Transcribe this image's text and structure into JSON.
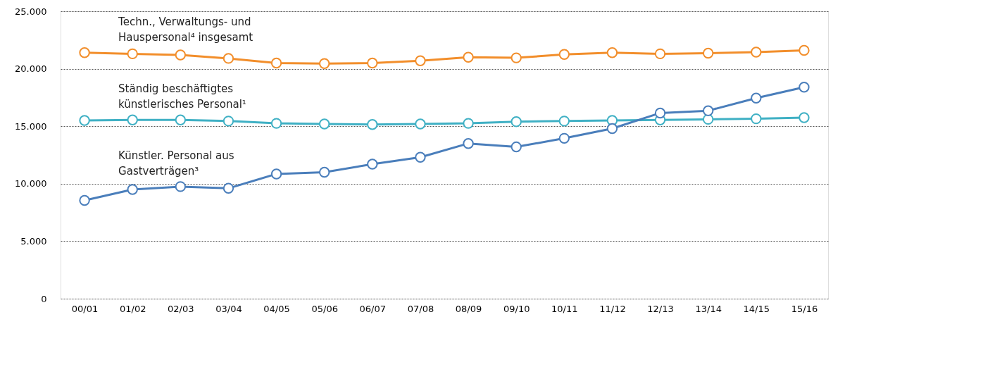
{
  "chart_data": {
    "type": "line",
    "categories": [
      "00/01",
      "01/02",
      "02/03",
      "03/04",
      "04/05",
      "05/06",
      "06/07",
      "07/08",
      "08/09",
      "09/10",
      "10/11",
      "11/12",
      "12/13",
      "13/14",
      "14/15",
      "15/16"
    ],
    "series": [
      {
        "name": "Techn., Verwaltungs- und\nHauspersonal⁴ insgesamt",
        "color": "#f28e2b",
        "values": [
          21400,
          21300,
          21200,
          20900,
          20500,
          20450,
          20500,
          20700,
          21000,
          20950,
          21250,
          21400,
          21300,
          21350,
          21450,
          21600
        ]
      },
      {
        "name": "Ständig beschäftigtes\nkünstlerisches Personal¹",
        "color": "#3fb0c4",
        "values": [
          15500,
          15550,
          15550,
          15450,
          15250,
          15200,
          15150,
          15200,
          15250,
          15400,
          15450,
          15500,
          15550,
          15600,
          15650,
          15750
        ]
      },
      {
        "name": "Künstler. Personal aus\nGastverträgen³",
        "color": "#4a7ebb",
        "values": [
          8550,
          9500,
          9750,
          9600,
          10850,
          11000,
          11700,
          12300,
          13500,
          13200,
          13950,
          14800,
          16150,
          16350,
          17450,
          18400
        ]
      }
    ],
    "ylim": [
      0,
      25000
    ],
    "yticks": [
      {
        "value": 0,
        "label": "0"
      },
      {
        "value": 5000,
        "label": "5.000"
      },
      {
        "value": 10000,
        "label": "10.000"
      },
      {
        "value": 15000,
        "label": "15.000"
      },
      {
        "value": 20000,
        "label": "20.000"
      },
      {
        "value": 25000,
        "label": "25.000"
      }
    ],
    "grid": "y",
    "marker": "circle",
    "line_style": "solid"
  }
}
